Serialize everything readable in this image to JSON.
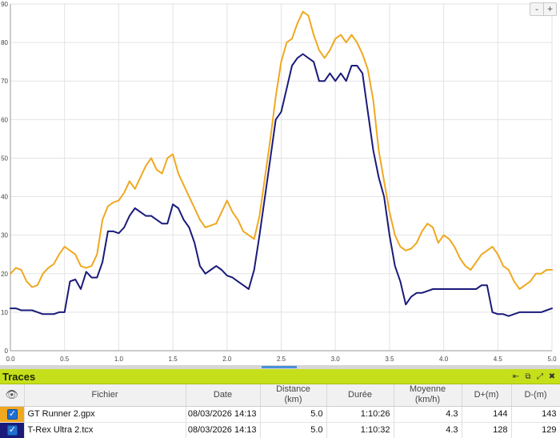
{
  "chart_data": {
    "type": "line",
    "xlim": [
      0.0,
      5.0
    ],
    "ylim": [
      0,
      90
    ],
    "x_ticks": [
      "0.0",
      "0.5",
      "1.0",
      "1.5",
      "2.0",
      "2.5",
      "3.0",
      "3.5",
      "4.0",
      "4.5",
      "5.0"
    ],
    "y_ticks": [
      "0",
      "10",
      "20",
      "30",
      "40",
      "50",
      "60",
      "70",
      "80",
      "90"
    ],
    "grid": true,
    "series": [
      {
        "name": "GT Runner 2.gpx",
        "color": "#f0a820",
        "x": [
          0.0,
          0.05,
          0.1,
          0.15,
          0.2,
          0.25,
          0.3,
          0.35,
          0.4,
          0.45,
          0.5,
          0.55,
          0.6,
          0.65,
          0.7,
          0.75,
          0.8,
          0.85,
          0.9,
          0.95,
          1.0,
          1.05,
          1.1,
          1.15,
          1.2,
          1.25,
          1.3,
          1.35,
          1.4,
          1.45,
          1.5,
          1.55,
          1.6,
          1.65,
          1.7,
          1.75,
          1.8,
          1.85,
          1.9,
          1.95,
          2.0,
          2.05,
          2.1,
          2.15,
          2.2,
          2.25,
          2.3,
          2.35,
          2.4,
          2.45,
          2.5,
          2.55,
          2.6,
          2.65,
          2.7,
          2.75,
          2.8,
          2.85,
          2.9,
          2.95,
          3.0,
          3.05,
          3.1,
          3.15,
          3.2,
          3.25,
          3.3,
          3.35,
          3.4,
          3.45,
          3.5,
          3.55,
          3.6,
          3.65,
          3.7,
          3.75,
          3.8,
          3.85,
          3.9,
          3.95,
          4.0,
          4.05,
          4.1,
          4.15,
          4.2,
          4.25,
          4.3,
          4.35,
          4.4,
          4.45,
          4.5,
          4.55,
          4.6,
          4.65,
          4.7,
          4.75,
          4.8,
          4.85,
          4.9,
          4.95,
          5.0
        ],
        "y": [
          20,
          21.5,
          21,
          18,
          16.5,
          17,
          20,
          21.5,
          22.5,
          25,
          27,
          26,
          25,
          22,
          21.5,
          22,
          25,
          34,
          37.5,
          38.5,
          39,
          41,
          44,
          42,
          45,
          48,
          50,
          47,
          46,
          50,
          51,
          46,
          43,
          40,
          37,
          34,
          32,
          32.5,
          33,
          36,
          39,
          36,
          34,
          31,
          30,
          29,
          35,
          45,
          55,
          66,
          75,
          80,
          81,
          85,
          88,
          87,
          82,
          78,
          76,
          78,
          81,
          82,
          80,
          82,
          80,
          77,
          73,
          65,
          52,
          44,
          36,
          30,
          27,
          26,
          26.5,
          28,
          31,
          33,
          32,
          28,
          30,
          29,
          27,
          24,
          22,
          21,
          23,
          25,
          26,
          27,
          25,
          22,
          21,
          18,
          16,
          17,
          18,
          20,
          20,
          21,
          21
        ]
      },
      {
        "name": "T-Rex Ultra 2.tcx",
        "color": "#1a1a7a",
        "x": [
          0.0,
          0.05,
          0.1,
          0.15,
          0.2,
          0.25,
          0.3,
          0.35,
          0.4,
          0.45,
          0.5,
          0.55,
          0.6,
          0.65,
          0.7,
          0.75,
          0.8,
          0.85,
          0.9,
          0.95,
          1.0,
          1.05,
          1.1,
          1.15,
          1.2,
          1.25,
          1.3,
          1.35,
          1.4,
          1.45,
          1.5,
          1.55,
          1.6,
          1.65,
          1.7,
          1.75,
          1.8,
          1.85,
          1.9,
          1.95,
          2.0,
          2.05,
          2.1,
          2.15,
          2.2,
          2.25,
          2.3,
          2.35,
          2.4,
          2.45,
          2.5,
          2.55,
          2.6,
          2.65,
          2.7,
          2.75,
          2.8,
          2.85,
          2.9,
          2.95,
          3.0,
          3.05,
          3.1,
          3.15,
          3.2,
          3.25,
          3.3,
          3.35,
          3.4,
          3.45,
          3.5,
          3.55,
          3.6,
          3.65,
          3.7,
          3.75,
          3.8,
          3.85,
          3.9,
          3.95,
          4.0,
          4.05,
          4.1,
          4.15,
          4.2,
          4.25,
          4.3,
          4.35,
          4.4,
          4.45,
          4.5,
          4.55,
          4.6,
          4.65,
          4.7,
          4.75,
          4.8,
          4.85,
          4.9,
          4.95,
          5.0
        ],
        "y": [
          11,
          11,
          10.5,
          10.5,
          10.5,
          10,
          9.5,
          9.5,
          9.5,
          10,
          10,
          18,
          18.5,
          16,
          20.5,
          19,
          19,
          23,
          31,
          31,
          30.5,
          32,
          35,
          37,
          36,
          35,
          35,
          34,
          33,
          33,
          38,
          37,
          34,
          32,
          28,
          22,
          20,
          21,
          22,
          21,
          19.5,
          19,
          18,
          17,
          16,
          21,
          30,
          40,
          50,
          60,
          62,
          68,
          74,
          76,
          77,
          76,
          75,
          70,
          70,
          72,
          70,
          72,
          70,
          74,
          74,
          72,
          62,
          52,
          45,
          40,
          30,
          22,
          18,
          12,
          14,
          15,
          15,
          15.5,
          16,
          16,
          16,
          16,
          16,
          16,
          16,
          16,
          16,
          17,
          17,
          10,
          9.5,
          9.5,
          9,
          9.5,
          10,
          10,
          10,
          10,
          10,
          10.5,
          11
        ]
      }
    ]
  },
  "zoom": {
    "minus": "-",
    "plus": "+"
  },
  "panel": {
    "title": "Traces",
    "icons": {
      "prev": "⇤",
      "restore": "⧉",
      "expand": "⤢",
      "close": "✖"
    },
    "columns": {
      "eye": "👁",
      "fichier": "Fichier",
      "date": "Date",
      "distance": "Distance",
      "distance_unit": "(km)",
      "duree": "Durée",
      "moyenne": "Moyenne",
      "moyenne_unit": "(km/h)",
      "dplus": "D+(m)",
      "dminus": "D-(m)"
    },
    "rows": [
      {
        "color": "#f0a820",
        "check": "✓",
        "fichier": "GT Runner 2.gpx",
        "date": "08/03/2026 14:13",
        "distance": "5.0",
        "duree": "1:10:26",
        "moyenne": "4.3",
        "dplus": "144",
        "dminus": "143"
      },
      {
        "color": "#1a1a7a",
        "check": "✓",
        "fichier": "T-Rex Ultra 2.tcx",
        "date": "08/03/2026 14:13",
        "distance": "5.0",
        "duree": "1:10:32",
        "moyenne": "4.3",
        "dplus": "128",
        "dminus": "129"
      }
    ]
  }
}
